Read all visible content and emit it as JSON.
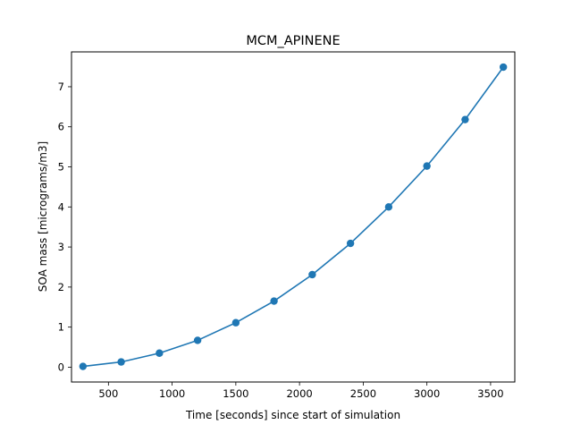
{
  "chart_data": {
    "type": "line",
    "title": "MCM_APINENE",
    "xlabel": "Time [seconds] since start of simulation",
    "ylabel": "SOA mass [micrograms/m3]",
    "xlim": [
      210,
      3690
    ],
    "ylim": [
      -0.37,
      7.87
    ],
    "xticks": [
      500,
      1000,
      1500,
      2000,
      2500,
      3000,
      3500
    ],
    "yticks": [
      0,
      1,
      2,
      3,
      4,
      5,
      6,
      7
    ],
    "grid": false,
    "legend": "none",
    "series": [
      {
        "color": "#1f77b4",
        "marker": "circle",
        "x": [
          300,
          600,
          900,
          1200,
          1500,
          1800,
          2100,
          2400,
          2700,
          3000,
          3300,
          3600
        ],
        "y": [
          0.02,
          0.13,
          0.35,
          0.67,
          1.11,
          1.65,
          2.31,
          3.09,
          4.0,
          5.02,
          6.18,
          7.49
        ]
      }
    ]
  }
}
